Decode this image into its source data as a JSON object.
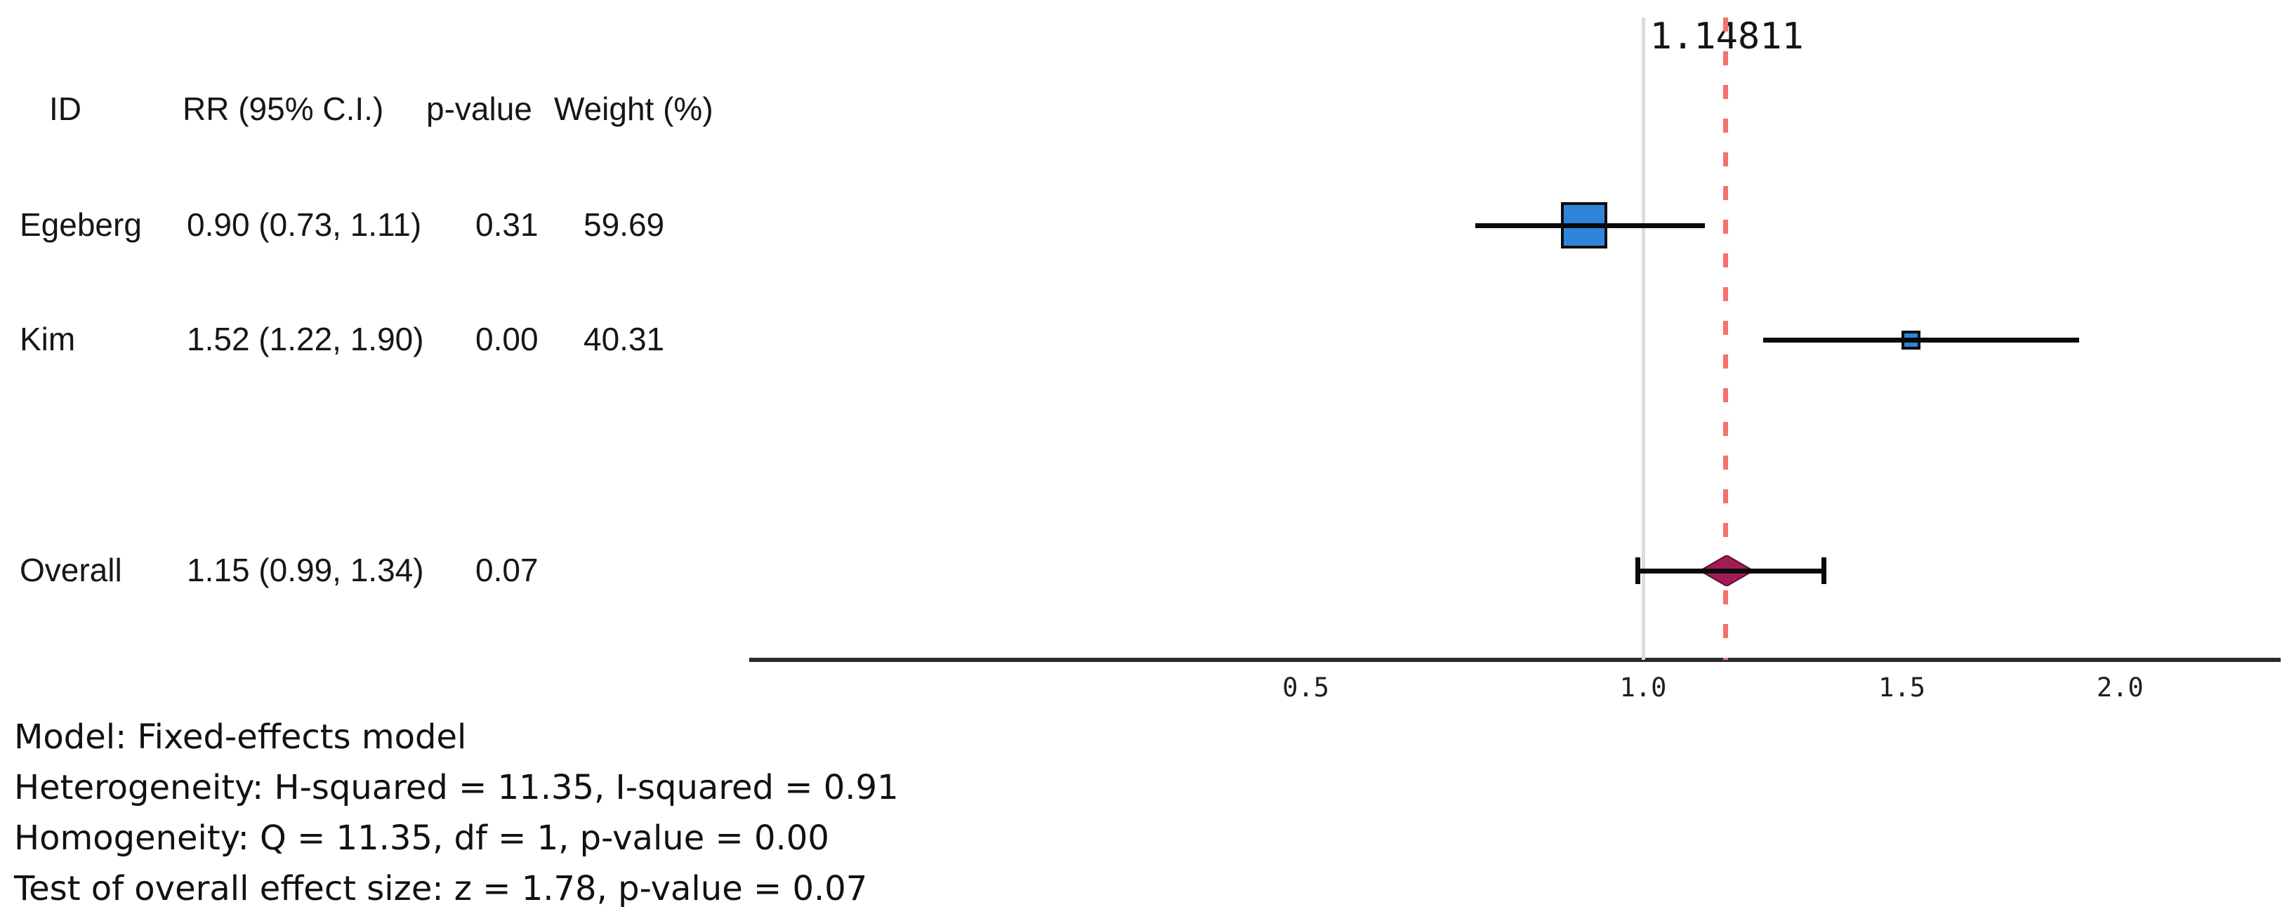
{
  "crosshair_label": "1.14811",
  "table": {
    "headers": {
      "id": "ID",
      "rr": "RR (95% C.I.)",
      "p": "p-value",
      "weight": "Weight (%)"
    },
    "rows": [
      {
        "id": "Egeberg",
        "rr": "0.90 (0.73, 1.11)",
        "p": "0.31",
        "weight": "59.69"
      },
      {
        "id": "Kim",
        "rr": "1.52 (1.22, 1.90)",
        "p": "0.00",
        "weight": "40.31"
      }
    ],
    "overall": {
      "id": "Overall",
      "rr": "1.15 (0.99, 1.34)",
      "p": "0.07"
    }
  },
  "footer": {
    "lines": [
      "Model: Fixed-effects model",
      "Heterogeneity: H-squared = 11.35, I-squared = 0.91",
      "Homogeneity: Q = 11.35, df = 1, p-value = 0.00",
      "Test of overall effect size: z = 1.78, p-value = 0.07"
    ]
  },
  "colors": {
    "study_marker_fill": "#2E86DC",
    "marker_border": "#0D0D0D",
    "overall_diamond": "#A21D56",
    "diamond_edge": "#5E1233",
    "reference_line": "#DCDCDC",
    "overall_effect_line": "#F4716D",
    "axis_line": "#2B2B2B",
    "ci_line": "#0A0A0A"
  },
  "chart_data": {
    "type": "forest",
    "effect_measure": "RR (risk ratio), 95% C.I.",
    "x_ticks": [
      0.5,
      1.0,
      1.5,
      2.0
    ],
    "x_axis_scale": "sqrt",
    "x_range_displayed": [
      0.35,
      2.35
    ],
    "reference_line_x": 1.0,
    "overall_effect_line_x": 1.14811,
    "grid": "off",
    "legend": "none",
    "studies": [
      {
        "id": "Egeberg",
        "rr": 0.9,
        "ci_low": 0.73,
        "ci_high": 1.11,
        "p_value": 0.31,
        "weight_pct": 59.69
      },
      {
        "id": "Kim",
        "rr": 1.52,
        "ci_low": 1.22,
        "ci_high": 1.9,
        "p_value": 0.0,
        "weight_pct": 40.31
      }
    ],
    "overall": {
      "rr": 1.15,
      "ci_low": 0.99,
      "ci_high": 1.34,
      "p_value": 0.07
    },
    "model": "Fixed-effects model",
    "heterogeneity": {
      "h_squared": 11.35,
      "i_squared": 0.91
    },
    "homogeneity": {
      "q": 11.35,
      "df": 1,
      "p_value": 0.0
    },
    "overall_effect_test": {
      "z": 1.78,
      "p_value": 0.07
    }
  }
}
